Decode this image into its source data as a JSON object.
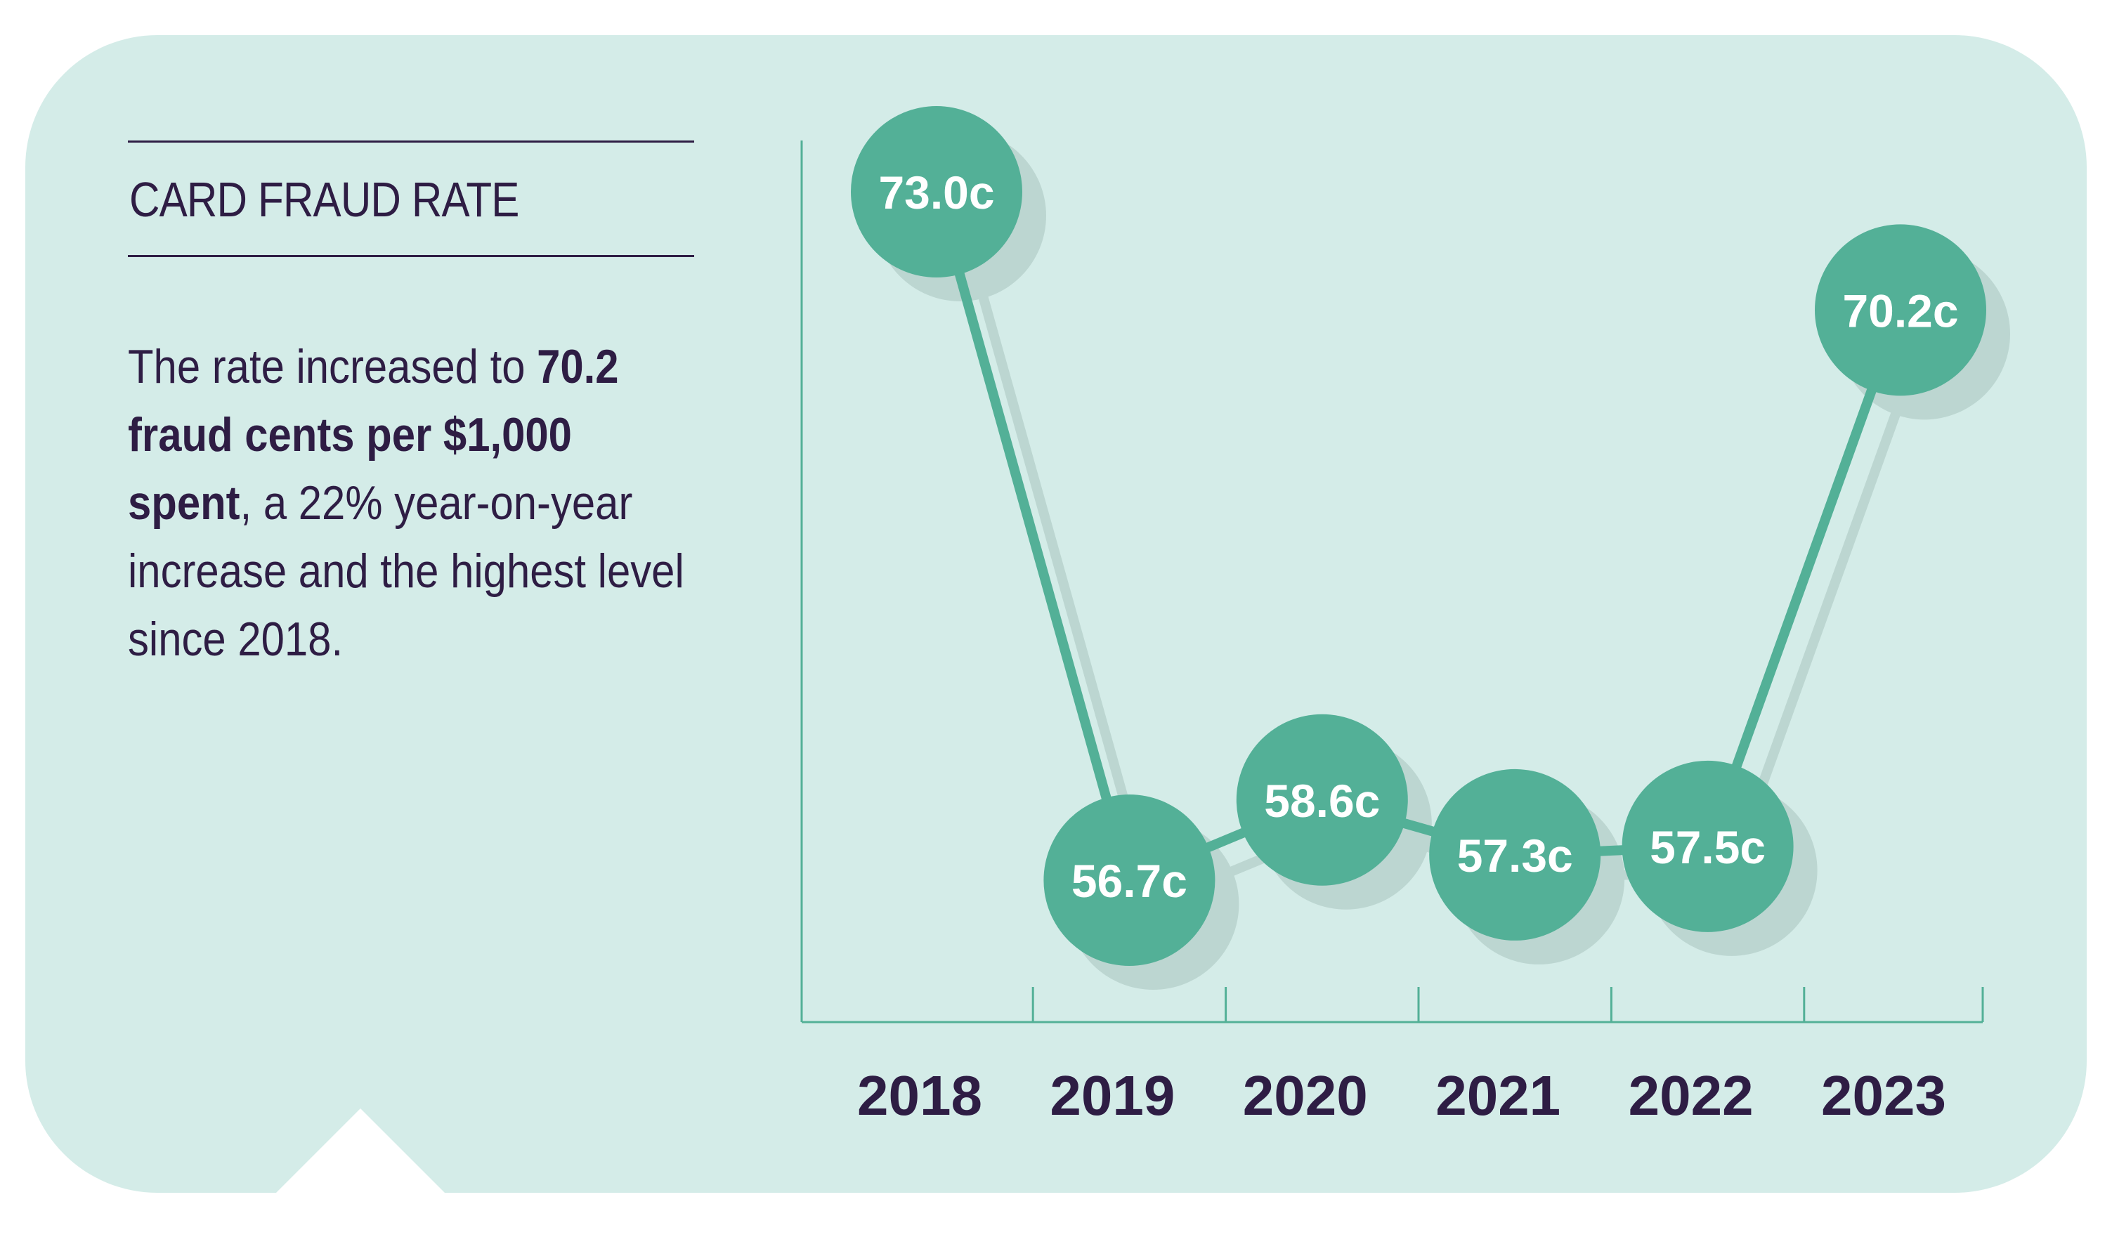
{
  "panel": {
    "title": "CARD FRAUD RATE",
    "body_lead": "The rate increased to ",
    "body_bold": "70.2 fraud cents per $1,000 spent",
    "body_tail": ", a 22% year-on-year increase and the highest level since 2018."
  },
  "colors": {
    "card_background": "#d4ece8",
    "accent": "#53b097",
    "shadow": "#bcd6d1",
    "text": "#2e1d44",
    "axis": "#53b097"
  },
  "chart_data": {
    "type": "line",
    "title": "",
    "xlabel": "",
    "ylabel": "",
    "categories": [
      "2018",
      "2019",
      "2020",
      "2021",
      "2022",
      "2023"
    ],
    "values": [
      73.0,
      56.7,
      58.6,
      57.3,
      57.5,
      70.2
    ],
    "labels": [
      "73.0c",
      "56.7c",
      "58.6c",
      "57.3c",
      "57.5c",
      "70.2c"
    ],
    "ylim": [
      50,
      75
    ],
    "grid": false,
    "legend": "none"
  }
}
